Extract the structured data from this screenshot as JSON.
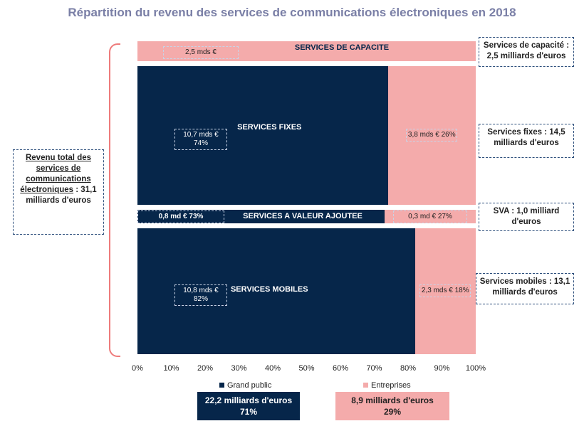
{
  "chart_data": {
    "type": "bar",
    "subtype": "marimekko-horizontal",
    "title": "Répartition du revenu des services de communications électroniques en 2018",
    "xticks": [
      "0%",
      "10%",
      "20%",
      "30%",
      "40%",
      "50%",
      "60%",
      "70%",
      "80%",
      "90%",
      "100%"
    ],
    "xlim": [
      0,
      100
    ],
    "legend": [
      {
        "name": "Grand public",
        "color": "#06264a"
      },
      {
        "name": "Entreprises",
        "color": "#f4abab"
      }
    ],
    "rows": [
      {
        "name": "SERVICES DE CAPACITE",
        "total": 2.5,
        "grand_public_pct": 0,
        "gp_label": "",
        "ent_label": "2,5 mds €",
        "side": "Services de capacité : 2,5 milliards d'euros"
      },
      {
        "name": "SERVICES FIXES",
        "total": 14.5,
        "grand_public_pct": 74,
        "gp_label": "10,7 mds € 74%",
        "ent_label": "3,8 mds € 26%",
        "side": "Services fixes : 14,5 milliards d'euros"
      },
      {
        "name": "SERVICES A VALEUR AJOUTEE",
        "total": 1.0,
        "grand_public_pct": 73,
        "gp_label": "0,8 md €  73%",
        "ent_label": "0,3 md € 27%",
        "side": "SVA : 1,0 milliard d'euros"
      },
      {
        "name": "SERVICES MOBILES",
        "total": 13.1,
        "grand_public_pct": 82,
        "gp_label": "10,8 mds € 82%",
        "ent_label": "2,3 mds € 18%",
        "side": "Services mobiles : 13,1 milliards d'euros"
      }
    ],
    "total_box": {
      "title": "Revenu total des services de communications électroniques",
      "value": " : 31,1 milliards d'euros"
    },
    "totals": [
      {
        "text": "22,2  milliards d'euros",
        "pct": "71%"
      },
      {
        "text": "8,9 milliards d'euros",
        "pct": "29%"
      }
    ]
  }
}
